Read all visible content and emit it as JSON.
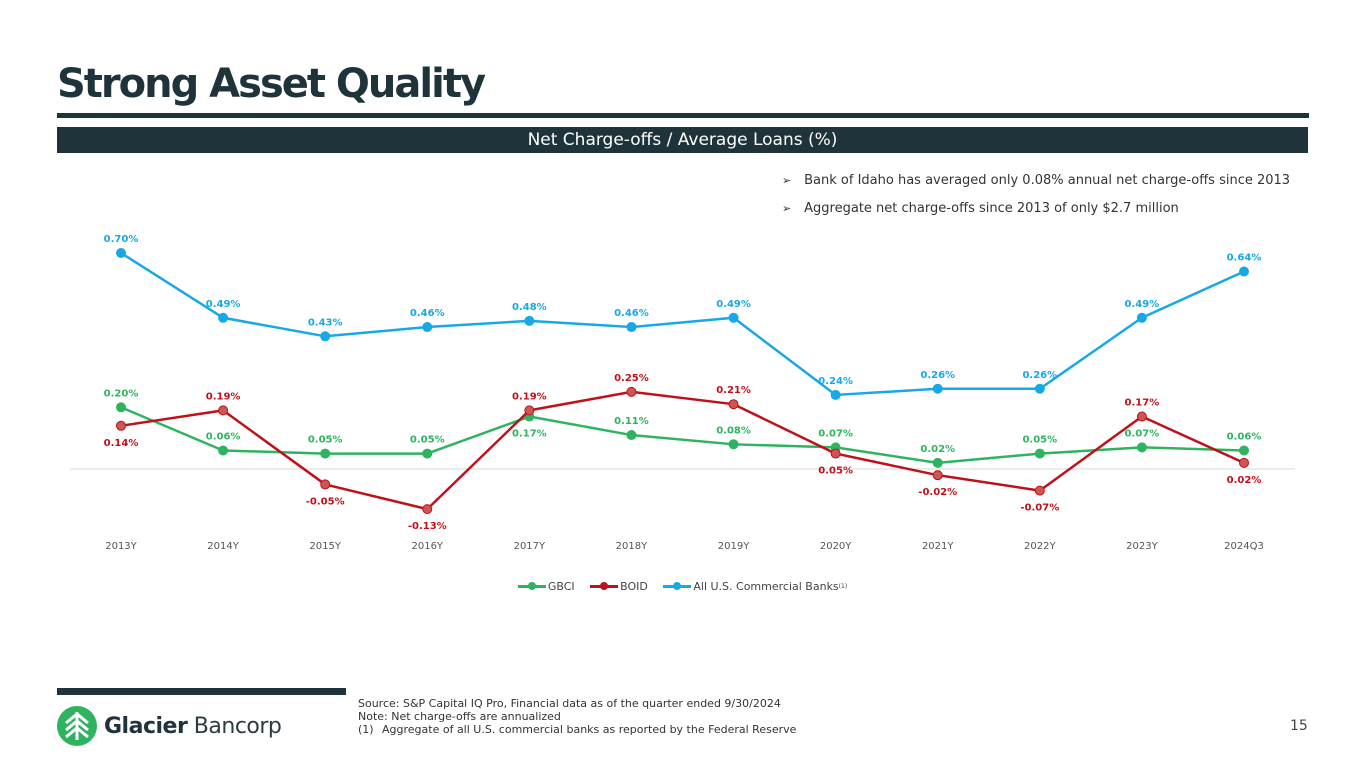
{
  "slide": {
    "title": "Strong Asset Quality",
    "banner": "Net Charge-offs / Average Loans (%)",
    "bullets": [
      "Bank of Idaho has averaged only 0.08% annual net charge-offs since 2013",
      "Aggregate net charge-offs since 2013 of only $2.7 million"
    ],
    "bullet_icon": "arrowhead-right-icon",
    "notes": {
      "source": "Source: S&P Capital IQ Pro, Financial data as of the quarter ended 9/30/2024",
      "note": "Note: Net charge-offs are annualized",
      "footnote_num": "(1)",
      "footnote_text": "Aggregate of all U.S. commercial banks as reported by the Federal Reserve"
    },
    "logo": {
      "bold": "Glacier",
      "light": "Bancorp",
      "icon": "pine-tree-icon"
    },
    "page_number": "15"
  },
  "chart_data": {
    "type": "line",
    "title": "Net Charge-offs / Average Loans (%)",
    "xlabel": "",
    "ylabel": "",
    "categories": [
      "2013Y",
      "2014Y",
      "2015Y",
      "2016Y",
      "2017Y",
      "2018Y",
      "2019Y",
      "2020Y",
      "2021Y",
      "2022Y",
      "2023Y",
      "2024Q3"
    ],
    "series": [
      {
        "name": "GBCI",
        "color": "#2eb460",
        "values": [
          0.2,
          0.06,
          0.05,
          0.05,
          0.17,
          0.11,
          0.08,
          0.07,
          0.02,
          0.05,
          0.07,
          0.06
        ],
        "label_pos": [
          "above",
          "above",
          "above",
          "above",
          "below",
          "above",
          "above",
          "above",
          "above",
          "above",
          "above",
          "above"
        ]
      },
      {
        "name": "BOID",
        "color": "#c0111a",
        "marker_fill": "#cc5555",
        "values": [
          0.14,
          0.19,
          -0.05,
          -0.13,
          0.19,
          0.25,
          0.21,
          0.05,
          -0.02,
          -0.07,
          0.17,
          0.02
        ],
        "label_pos": [
          "below",
          "above",
          "below",
          "below",
          "above",
          "above",
          "above",
          "below",
          "below",
          "below",
          "above",
          "below"
        ]
      },
      {
        "name": "All U.S. Commercial Banks",
        "footnote": "(1)",
        "color": "#16a9e6",
        "values": [
          0.7,
          0.49,
          0.43,
          0.46,
          0.48,
          0.46,
          0.49,
          0.24,
          0.26,
          0.26,
          0.49,
          0.64
        ],
        "label_pos": [
          "above",
          "above",
          "above",
          "above",
          "above",
          "above",
          "above",
          "above",
          "above",
          "above",
          "above",
          "above"
        ]
      }
    ],
    "ylim": [
      -0.2,
      0.75
    ],
    "zero_line": true,
    "grid": false,
    "legend": "bottom-center",
    "data_labels_format": "percent-2dp"
  }
}
